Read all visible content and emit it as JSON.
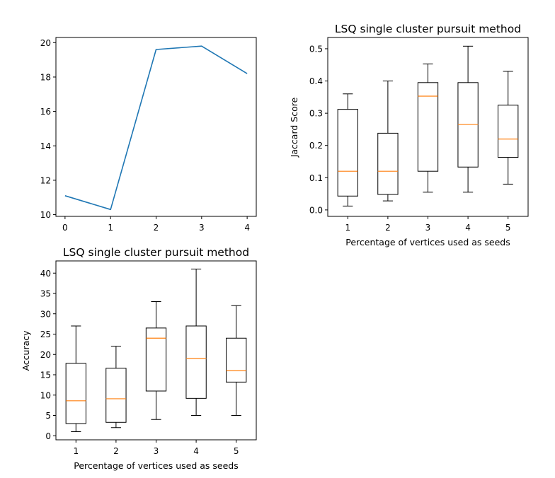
{
  "chart_data": [
    {
      "type": "line",
      "title": "",
      "xlabel": "",
      "ylabel": "",
      "xlim": [
        -0.2,
        4.2
      ],
      "ylim": [
        9.9,
        20.3
      ],
      "xticks": [
        0,
        1,
        2,
        3,
        4
      ],
      "xtick_labels": [
        "0",
        "1",
        "2",
        "3",
        "4"
      ],
      "yticks": [
        10,
        12,
        14,
        16,
        18,
        20
      ],
      "ytick_labels": [
        "10",
        "12",
        "14",
        "16",
        "18",
        "20"
      ],
      "grid": false,
      "series": [
        {
          "x": [
            0,
            1,
            2,
            3,
            4
          ],
          "y": [
            11.1,
            10.3,
            19.6,
            19.8,
            18.2
          ],
          "color": "#1f77b4"
        }
      ]
    },
    {
      "type": "box",
      "title": "LSQ single cluster pursuit method",
      "xlabel": "Percentage of vertices used as seeds",
      "ylabel": "Jaccard Score",
      "ylim": [
        -0.02,
        0.535
      ],
      "yticks": [
        0.0,
        0.1,
        0.2,
        0.3,
        0.4,
        0.5
      ],
      "ytick_labels": [
        "0.0",
        "0.1",
        "0.2",
        "0.3",
        "0.4",
        "0.5"
      ],
      "categories": [
        "1",
        "2",
        "3",
        "4",
        "5"
      ],
      "grid": false,
      "boxes": [
        {
          "whisker_low": 0.012,
          "q1": 0.043,
          "median": 0.12,
          "q3": 0.312,
          "whisker_high": 0.36
        },
        {
          "whisker_low": 0.028,
          "q1": 0.048,
          "median": 0.12,
          "q3": 0.238,
          "whisker_high": 0.4
        },
        {
          "whisker_low": 0.055,
          "q1": 0.12,
          "median": 0.353,
          "q3": 0.395,
          "whisker_high": 0.453
        },
        {
          "whisker_low": 0.055,
          "q1": 0.133,
          "median": 0.265,
          "q3": 0.395,
          "whisker_high": 0.508
        },
        {
          "whisker_low": 0.08,
          "q1": 0.163,
          "median": 0.22,
          "q3": 0.325,
          "whisker_high": 0.43
        }
      ],
      "box_color": "#000000",
      "median_color": "#ff7f0e"
    },
    {
      "type": "box",
      "title": "LSQ single cluster pursuit method",
      "xlabel": "Percentage of vertices used as seeds",
      "ylabel": "Accuracy",
      "ylim": [
        -1.0,
        43.0
      ],
      "yticks": [
        0,
        5,
        10,
        15,
        20,
        25,
        30,
        35,
        40
      ],
      "ytick_labels": [
        "0",
        "5",
        "10",
        "15",
        "20",
        "25",
        "30",
        "35",
        "40"
      ],
      "categories": [
        "1",
        "2",
        "3",
        "4",
        "5"
      ],
      "grid": false,
      "boxes": [
        {
          "whisker_low": 1,
          "q1": 3,
          "median": 8.6,
          "q3": 17.8,
          "whisker_high": 27
        },
        {
          "whisker_low": 2,
          "q1": 3.3,
          "median": 9.1,
          "q3": 16.6,
          "whisker_high": 22
        },
        {
          "whisker_low": 4,
          "q1": 11,
          "median": 24,
          "q3": 26.5,
          "whisker_high": 33
        },
        {
          "whisker_low": 5,
          "q1": 9.2,
          "median": 19,
          "q3": 27,
          "whisker_high": 41
        },
        {
          "whisker_low": 5,
          "q1": 13.2,
          "median": 16,
          "q3": 24,
          "whisker_high": 32
        }
      ],
      "box_color": "#000000",
      "median_color": "#ff7f0e"
    }
  ]
}
